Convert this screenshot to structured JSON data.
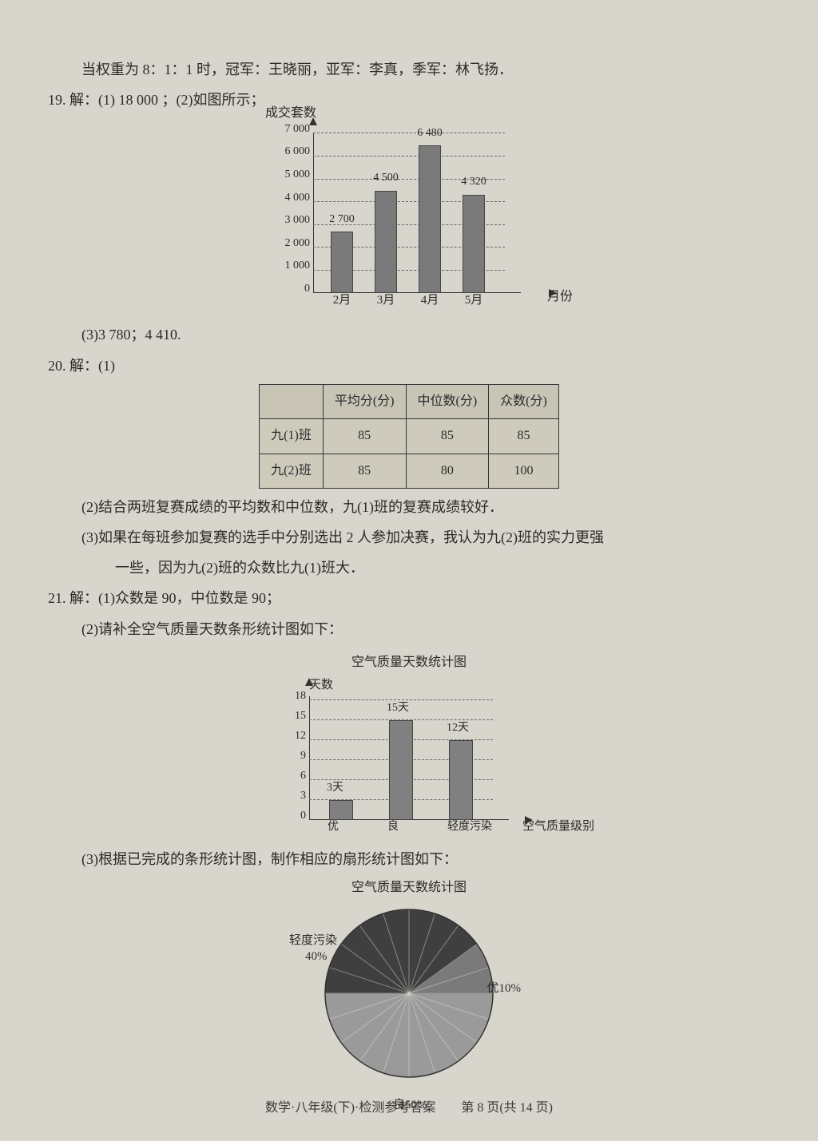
{
  "line_top": "当权重为 8：1：1 时，冠军：王晓丽，亚军：李真，季军：林飞扬．",
  "q19": {
    "header": "19. 解：(1) 18 000 ；(2)如图所示；",
    "part3": "(3)3 780；4 410.",
    "chart": {
      "type": "bar",
      "y_axis_label": "成交套数",
      "x_axis_label": "月份",
      "y_max": 7000,
      "y_ticks": [
        0,
        1000,
        2000,
        3000,
        4000,
        5000,
        6000,
        7000
      ],
      "y_tick_labels": [
        "0",
        "1 000",
        "2 000",
        "3 000",
        "4 000",
        "5 000",
        "6 000",
        "7 000"
      ],
      "categories": [
        "2月",
        "3月",
        "4月",
        "5月"
      ],
      "values": [
        2700,
        4500,
        6480,
        4320
      ],
      "value_labels": [
        "2 700",
        "4 500",
        "6 480",
        "4 320"
      ],
      "bar_color": "#7a7a7a",
      "grid_color": "#666666",
      "axis_color": "#333333"
    }
  },
  "q20": {
    "header": "20. 解：(1)",
    "table": {
      "columns": [
        "",
        "平均分(分)",
        "中位数(分)",
        "众数(分)"
      ],
      "rows": [
        [
          "九(1)班",
          "85",
          "85",
          "85"
        ],
        [
          "九(2)班",
          "85",
          "80",
          "100"
        ]
      ]
    },
    "part2": "(2)结合两班复赛成绩的平均数和中位数，九(1)班的复赛成绩较好．",
    "part3a": "(3)如果在每班参加复赛的选手中分别选出 2 人参加决赛，我认为九(2)班的实力更强",
    "part3b": "一些，因为九(2)班的众数比九(1)班大．"
  },
  "q21": {
    "part1": "21. 解：(1)众数是 90，中位数是 90；",
    "part2": "(2)请补全空气质量天数条形统计图如下：",
    "chart": {
      "type": "bar",
      "title": "空气质量天数统计图",
      "y_axis_label": "天数",
      "x_axis_label": "空气质量级别",
      "y_max": 18,
      "y_ticks": [
        0,
        3,
        6,
        9,
        12,
        15,
        18
      ],
      "y_tick_labels": [
        "0",
        "3",
        "6",
        "9",
        "12",
        "15",
        "18"
      ],
      "categories": [
        "优",
        "良",
        "轻度污染"
      ],
      "values": [
        3,
        15,
        12
      ],
      "value_labels": [
        "3天",
        "15天",
        "12天"
      ],
      "bar_color": "#808080",
      "grid_color": "#666666"
    },
    "part3": "(3)根据已完成的条形统计图，制作相应的扇形统计图如下：",
    "pie": {
      "type": "pie",
      "title": "空气质量天数统计图",
      "radius": 105,
      "slices": [
        {
          "label": "优10%",
          "value": 10,
          "color": "#7a7a7a"
        },
        {
          "label": "良50%",
          "value": 50,
          "color": "#9a9a9a"
        },
        {
          "label": "轻度污染",
          "label2": "40%",
          "value": 40,
          "color": "#3f3f3f"
        }
      ],
      "tick_lines": true
    }
  },
  "footer": "数学·八年级(下)·检测参考答案　　第 8 页(共 14 页)"
}
